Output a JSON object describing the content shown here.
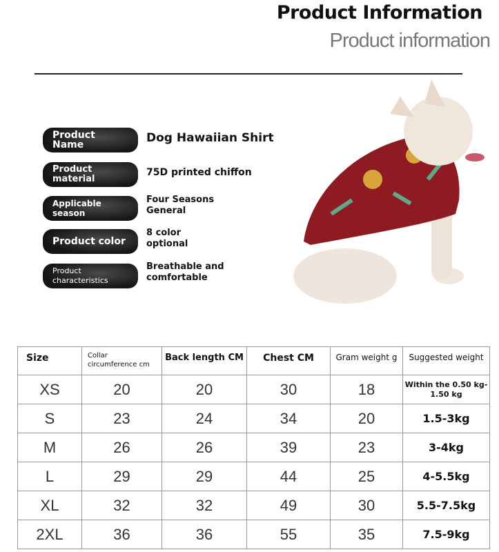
{
  "header": {
    "title": "Product Information",
    "subtitle": "Product information"
  },
  "specs": [
    {
      "label": "Product Name",
      "value": "Dog Hawaiian Shirt"
    },
    {
      "label": "Product material",
      "value": "75D printed chiffon"
    },
    {
      "label": "Applicable season",
      "value": "Four Seasons General"
    },
    {
      "label": "Product color",
      "value": "8 color optional"
    },
    {
      "label": "Product characteristics",
      "value": "Breathable and comfortable"
    }
  ],
  "image": {
    "icon": "french-bulldog-in-red-hawaiian-shirt",
    "shirt_color": "#8e1a22"
  },
  "size_table": {
    "headers": [
      "Size",
      "Collar circumference cm",
      "Back length CM",
      "Chest CM",
      "Gram weight g",
      "Suggested weight"
    ],
    "rows": [
      [
        "XS",
        "20",
        "20",
        "30",
        "18",
        "Within the 0.50 kg-1.50 kg"
      ],
      [
        "S",
        "23",
        "24",
        "34",
        "20",
        "1.5-3kg"
      ],
      [
        "M",
        "26",
        "26",
        "39",
        "23",
        "3-4kg"
      ],
      [
        "L",
        "29",
        "29",
        "44",
        "25",
        "4-5.5kg"
      ],
      [
        "XL",
        "32",
        "32",
        "49",
        "30",
        "5.5-7.5kg"
      ],
      [
        "2XL",
        "36",
        "36",
        "55",
        "35",
        "7.5-9kg"
      ]
    ]
  }
}
